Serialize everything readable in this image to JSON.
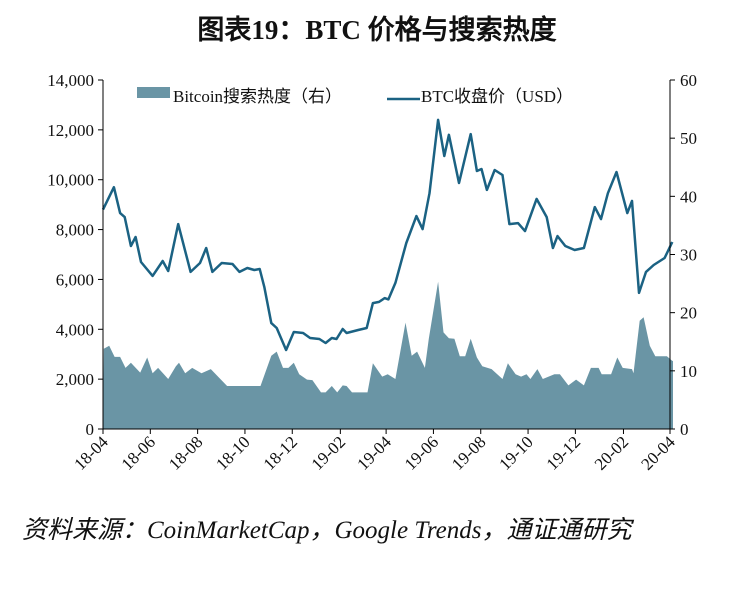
{
  "title": "图表19：BTC 价格与搜索热度",
  "source": "资料来源：CoinMarketCap，Google Trends，通证通研究",
  "chart_data": {
    "type": "line+area",
    "title": "图表19：BTC 价格与搜索热度",
    "x_ticks": [
      "18-04",
      "18-06",
      "18-08",
      "18-10",
      "18-12",
      "19-02",
      "19-04",
      "19-06",
      "19-08",
      "19-10",
      "19-12",
      "20-02",
      "20-04"
    ],
    "x_tick_dates": [
      "2018-04-01",
      "2018-06-01",
      "2018-08-01",
      "2018-10-01",
      "2018-12-01",
      "2019-02-01",
      "2019-04-01",
      "2019-06-01",
      "2019-08-01",
      "2019-10-01",
      "2019-12-01",
      "2020-02-01",
      "2020-04-01"
    ],
    "xlim": [
      "2018-04-01",
      "2020-04-06"
    ],
    "y_left": {
      "ylim": [
        0,
        14000
      ],
      "ticks": [
        "0",
        "2,000",
        "4,000",
        "6,000",
        "8,000",
        "10,000",
        "12,000",
        "14,000"
      ],
      "tick_values": [
        0,
        2000,
        4000,
        6000,
        8000,
        10000,
        12000,
        14000
      ]
    },
    "y_right": {
      "ylim": [
        0,
        60
      ],
      "ticks": [
        "0",
        "10",
        "20",
        "30",
        "40",
        "50",
        "60"
      ],
      "tick_values": [
        0,
        10,
        20,
        30,
        40,
        50,
        60
      ]
    },
    "legend_placement": "top",
    "grid": false,
    "colors": {
      "price_line": "#1b6283",
      "search_area": "#6a95a5"
    },
    "series": [
      {
        "name": "Bitcoin搜索热度（右）",
        "type": "area",
        "axis": "right",
        "points": [
          [
            "2018-04-02",
            13.8
          ],
          [
            "2018-04-09",
            14.3
          ],
          [
            "2018-04-16",
            12.4
          ],
          [
            "2018-04-23",
            12.4
          ],
          [
            "2018-04-30",
            10.5
          ],
          [
            "2018-05-07",
            11.4
          ],
          [
            "2018-05-19",
            9.7
          ],
          [
            "2018-05-28",
            12.3
          ],
          [
            "2018-06-04",
            9.6
          ],
          [
            "2018-06-11",
            10.5
          ],
          [
            "2018-06-24",
            8.6
          ],
          [
            "2018-07-04",
            10.8
          ],
          [
            "2018-07-08",
            11.4
          ],
          [
            "2018-07-16",
            9.6
          ],
          [
            "2018-07-25",
            10.5
          ],
          [
            "2018-08-06",
            9.6
          ],
          [
            "2018-08-18",
            10.3
          ],
          [
            "2018-09-08",
            7.4
          ],
          [
            "2018-10-21",
            7.4
          ],
          [
            "2018-11-04",
            12.6
          ],
          [
            "2018-11-11",
            13.3
          ],
          [
            "2018-11-19",
            10.5
          ],
          [
            "2018-11-26",
            10.5
          ],
          [
            "2018-12-03",
            11.4
          ],
          [
            "2018-12-10",
            9.4
          ],
          [
            "2018-12-20",
            8.5
          ],
          [
            "2018-12-27",
            8.4
          ],
          [
            "2019-01-07",
            6.3
          ],
          [
            "2019-01-13",
            6.3
          ],
          [
            "2019-01-21",
            7.4
          ],
          [
            "2019-01-28",
            6.3
          ],
          [
            "2019-02-04",
            7.5
          ],
          [
            "2019-02-09",
            7.4
          ],
          [
            "2019-02-16",
            6.3
          ],
          [
            "2019-03-08",
            6.3
          ],
          [
            "2019-03-15",
            11.3
          ],
          [
            "2019-03-27",
            9.0
          ],
          [
            "2019-04-03",
            9.4
          ],
          [
            "2019-04-13",
            8.6
          ],
          [
            "2019-04-26",
            18.3
          ],
          [
            "2019-05-04",
            12.6
          ],
          [
            "2019-05-11",
            13.3
          ],
          [
            "2019-05-21",
            10.5
          ],
          [
            "2019-05-26",
            15.5
          ],
          [
            "2019-06-07",
            25.3
          ],
          [
            "2019-06-14",
            16.6
          ],
          [
            "2019-06-21",
            15.6
          ],
          [
            "2019-06-28",
            15.5
          ],
          [
            "2019-07-05",
            12.5
          ],
          [
            "2019-07-12",
            12.5
          ],
          [
            "2019-07-19",
            15.5
          ],
          [
            "2019-07-27",
            12.3
          ],
          [
            "2019-08-03",
            10.8
          ],
          [
            "2019-08-15",
            10.3
          ],
          [
            "2019-08-29",
            8.6
          ],
          [
            "2019-09-05",
            11.3
          ],
          [
            "2019-09-15",
            9.4
          ],
          [
            "2019-09-22",
            9.0
          ],
          [
            "2019-09-29",
            9.4
          ],
          [
            "2019-10-04",
            8.6
          ],
          [
            "2019-10-13",
            10.3
          ],
          [
            "2019-10-20",
            8.6
          ],
          [
            "2019-11-04",
            9.4
          ],
          [
            "2019-11-11",
            9.4
          ],
          [
            "2019-11-22",
            7.5
          ],
          [
            "2019-12-02",
            8.5
          ],
          [
            "2019-12-12",
            7.5
          ],
          [
            "2019-12-21",
            10.5
          ],
          [
            "2019-12-31",
            10.5
          ],
          [
            "2020-01-04",
            9.4
          ],
          [
            "2020-01-16",
            9.4
          ],
          [
            "2020-01-24",
            12.3
          ],
          [
            "2020-01-31",
            10.5
          ],
          [
            "2020-02-12",
            10.3
          ],
          [
            "2020-02-14",
            9.6
          ],
          [
            "2020-02-22",
            18.6
          ],
          [
            "2020-02-27",
            19.2
          ],
          [
            "2020-03-06",
            14.3
          ],
          [
            "2020-03-13",
            12.5
          ],
          [
            "2020-03-28",
            12.5
          ],
          [
            "2020-04-04",
            11.7
          ]
        ]
      },
      {
        "name": "BTC收盘价（USD）",
        "type": "line",
        "axis": "left",
        "points": [
          [
            "2018-04-01",
            8800
          ],
          [
            "2018-04-15",
            9700
          ],
          [
            "2018-04-23",
            8660
          ],
          [
            "2018-04-29",
            8500
          ],
          [
            "2018-05-07",
            7340
          ],
          [
            "2018-05-13",
            7700
          ],
          [
            "2018-05-20",
            6700
          ],
          [
            "2018-06-04",
            6140
          ],
          [
            "2018-06-17",
            6740
          ],
          [
            "2018-06-24",
            6340
          ],
          [
            "2018-07-07",
            8220
          ],
          [
            "2018-07-23",
            6300
          ],
          [
            "2018-08-04",
            6660
          ],
          [
            "2018-08-12",
            7260
          ],
          [
            "2018-08-20",
            6300
          ],
          [
            "2018-09-01",
            6660
          ],
          [
            "2018-09-15",
            6620
          ],
          [
            "2018-09-24",
            6300
          ],
          [
            "2018-10-04",
            6460
          ],
          [
            "2018-10-13",
            6380
          ],
          [
            "2018-10-20",
            6420
          ],
          [
            "2018-10-26",
            5700
          ],
          [
            "2018-11-04",
            4250
          ],
          [
            "2018-11-11",
            4050
          ],
          [
            "2018-11-23",
            3170
          ],
          [
            "2018-12-03",
            3890
          ],
          [
            "2018-12-15",
            3850
          ],
          [
            "2018-12-24",
            3650
          ],
          [
            "2019-01-05",
            3610
          ],
          [
            "2019-01-13",
            3450
          ],
          [
            "2019-01-21",
            3650
          ],
          [
            "2019-01-27",
            3610
          ],
          [
            "2019-02-04",
            4010
          ],
          [
            "2019-02-09",
            3850
          ],
          [
            "2019-02-24",
            3970
          ],
          [
            "2019-03-07",
            4050
          ],
          [
            "2019-03-15",
            5050
          ],
          [
            "2019-03-23",
            5100
          ],
          [
            "2019-03-30",
            5250
          ],
          [
            "2019-04-04",
            5200
          ],
          [
            "2019-04-13",
            5860
          ],
          [
            "2019-04-27",
            7460
          ],
          [
            "2019-05-10",
            8540
          ],
          [
            "2019-05-18",
            8020
          ],
          [
            "2019-05-27",
            9460
          ],
          [
            "2019-06-07",
            12400
          ],
          [
            "2019-06-15",
            10950
          ],
          [
            "2019-06-21",
            11800
          ],
          [
            "2019-07-04",
            9870
          ],
          [
            "2019-07-19",
            11830
          ],
          [
            "2019-07-27",
            10350
          ],
          [
            "2019-08-02",
            10430
          ],
          [
            "2019-08-09",
            9590
          ],
          [
            "2019-08-19",
            10390
          ],
          [
            "2019-08-29",
            10190
          ],
          [
            "2019-09-07",
            8220
          ],
          [
            "2019-09-18",
            8260
          ],
          [
            "2019-09-27",
            7940
          ],
          [
            "2019-10-12",
            9230
          ],
          [
            "2019-10-25",
            8500
          ],
          [
            "2019-11-02",
            7260
          ],
          [
            "2019-11-08",
            7740
          ],
          [
            "2019-11-18",
            7340
          ],
          [
            "2019-11-30",
            7180
          ],
          [
            "2019-12-12",
            7260
          ],
          [
            "2019-12-26",
            8900
          ],
          [
            "2020-01-03",
            8420
          ],
          [
            "2020-01-12",
            9460
          ],
          [
            "2020-01-23",
            10310
          ],
          [
            "2020-02-06",
            8660
          ],
          [
            "2020-02-12",
            9150
          ],
          [
            "2020-02-21",
            5460
          ],
          [
            "2020-03-01",
            6300
          ],
          [
            "2020-03-11",
            6580
          ],
          [
            "2020-03-25",
            6860
          ],
          [
            "2020-04-04",
            7500
          ]
        ]
      }
    ]
  }
}
